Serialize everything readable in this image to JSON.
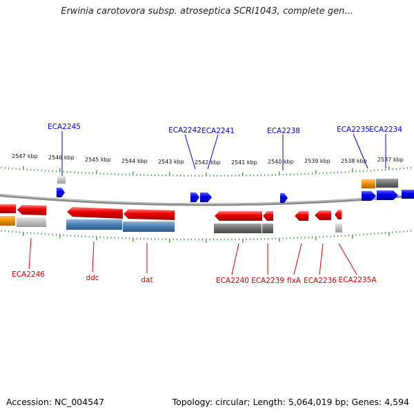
{
  "title": "Erwinia carotovora subsp. atroseptica SCRI1043, complete gen...",
  "footer": {
    "accession": "Accession: NC_004547",
    "summary": "Topology: circular; Length: 5,064,019 bp; Genes: 4,594"
  },
  "scale_labels": [
    "2547 kbp",
    "2546 kbp",
    "2545 kbp",
    "2544 kbp",
    "2543 kbp",
    "2542 kbp",
    "2541 kbp",
    "2540 kbp",
    "2539 kbp",
    "2538 kbp",
    "2537 kbp"
  ],
  "top_gene_labels": [
    "ECA2245",
    "ECA2242",
    "ECA2241",
    "ECA2238",
    "ECA2235",
    "ECA2234"
  ],
  "bottom_gene_labels": [
    "ECA2246",
    "ddc",
    "dat",
    "ECA2240",
    "ECA2239",
    "flxA",
    "ECA2236",
    "ECA2235A"
  ],
  "colors": {
    "plus_strand": "#0000ee",
    "minus_strand": "#ee0000",
    "label_top": "#0000cc",
    "label_bottom": "#cc0000",
    "tick": "#1a8a1a",
    "orange": "#f08c00",
    "gray": "#7a7a7a",
    "steelblue": "#4a7fb5"
  }
}
